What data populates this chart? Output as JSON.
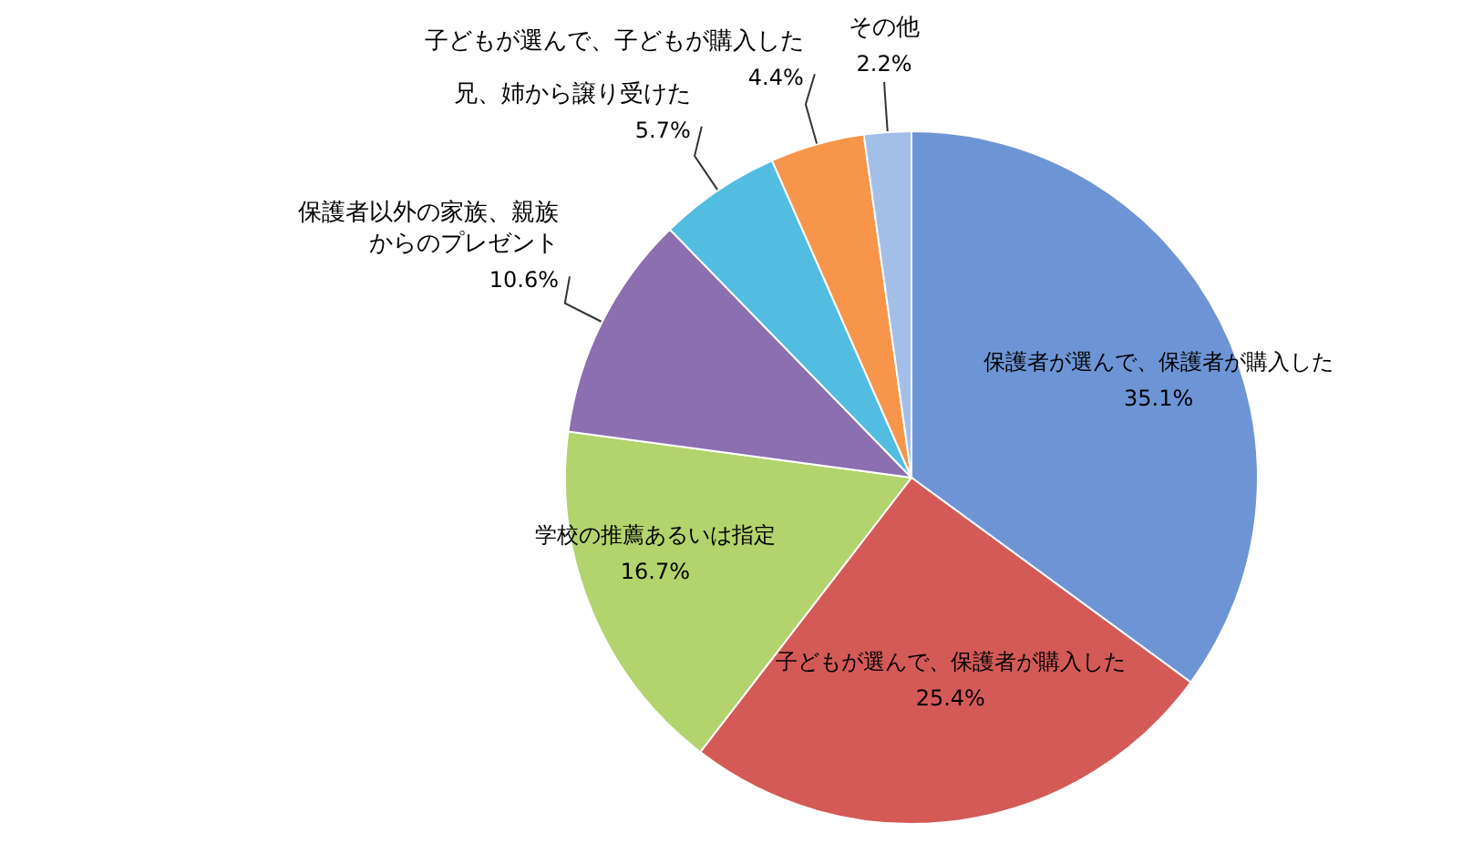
{
  "chart_data": {
    "type": "pie",
    "categories": [
      "保護者が選んで、保護者が購入した",
      "子どもが選んで、保護者が購入した",
      "学校の推薦あるいは指定",
      "保護者以外の家族、親族からのプレゼント",
      "兄、姉から譲り受けた",
      "子どもが選んで、子どもが購入した",
      "その他"
    ],
    "values": [
      35.1,
      25.4,
      16.7,
      10.6,
      5.7,
      4.4,
      2.2
    ],
    "colors": [
      "#6d95d6",
      "#d45a57",
      "#b3d36c",
      "#8b6fb0",
      "#52bde0",
      "#f7954a",
      "#a3bfe8"
    ],
    "value_labels": [
      "35.1%",
      "25.4%",
      "16.7%",
      "10.6%",
      "5.7%",
      "4.4%",
      "2.2%"
    ]
  }
}
